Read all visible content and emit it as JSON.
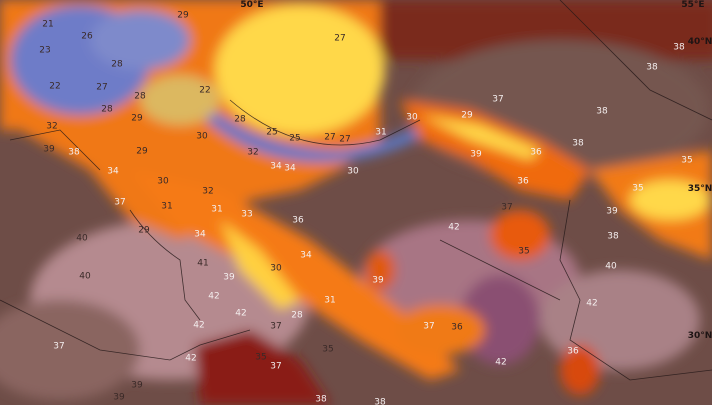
{
  "map": {
    "type": "temperature forecast map",
    "colors": {
      "hot_base": "#6e4d47",
      "desert_pink": "#b58a8f",
      "desert_purple": "#8a4f72",
      "orange": "#f06a10",
      "yellow": "#ffd84a",
      "sea_red": "#8a1a12",
      "cool_blue": "#6e7cc8"
    },
    "coordinates": [
      "50°E",
      "55°E",
      "40°N",
      "35°N",
      "30°N"
    ],
    "labels": [
      "21",
      "23",
      "22",
      "26",
      "28",
      "29",
      "27",
      "27",
      "28",
      "28",
      "29",
      "22",
      "28",
      "25",
      "25",
      "27",
      "27",
      "30",
      "29",
      "32",
      "39",
      "38",
      "34",
      "32",
      "34",
      "34",
      "30",
      "30",
      "32",
      "37",
      "30",
      "29",
      "31",
      "36",
      "39",
      "36",
      "38",
      "38",
      "38",
      "38",
      "35",
      "35",
      "37",
      "31",
      "31",
      "33",
      "36",
      "29",
      "34",
      "40",
      "34",
      "41",
      "39",
      "30",
      "40",
      "42",
      "31",
      "42",
      "28",
      "42",
      "37",
      "37",
      "35",
      "42",
      "37",
      "35",
      "39",
      "39",
      "38",
      "37",
      "39",
      "42",
      "38",
      "35",
      "40",
      "39",
      "42",
      "37",
      "36",
      "36",
      "42",
      "38"
    ]
  }
}
